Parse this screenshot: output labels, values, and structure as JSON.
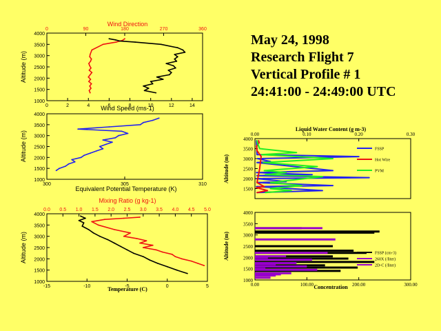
{
  "header": {
    "line1": "May 24, 1998",
    "line2": "Research Flight 7",
    "line3": "Vertical Profile # 1",
    "line4": "24:41:00 - 24:49:00 UTC"
  },
  "colors": {
    "background": "#ffff66",
    "red": "#ee1111",
    "blue": "#2222ee",
    "green": "#22ee22",
    "purple": "#9900cc",
    "black": "#000000"
  },
  "chart_data": [
    {
      "id": "wind",
      "type": "line",
      "title": "Wind Direction",
      "xlabel": "Wind Speed (ms-1)",
      "ylabel": "Altitude (m)",
      "ylim": [
        1000,
        4000
      ],
      "yticks": [
        "1000",
        "1500",
        "2000",
        "2500",
        "3000",
        "3500",
        "4000"
      ],
      "top_axis": {
        "lim": [
          0,
          360
        ],
        "ticks": [
          "0",
          "90",
          "180",
          "270",
          "360"
        ]
      },
      "bottom_axis": {
        "lim": [
          0,
          15
        ],
        "ticks": [
          "0",
          "2",
          "4",
          "6",
          "8",
          "10",
          "12",
          "14"
        ]
      },
      "series": [
        {
          "name": "Wind Direction",
          "axis": "top",
          "color": "#ee1111",
          "x": [
            100,
            98,
            102,
            99,
            103,
            97,
            101,
            96,
            100,
            104,
            98,
            102,
            99,
            97,
            101,
            103,
            99,
            100,
            104,
            130,
            160,
            175,
            180
          ],
          "y": [
            1350,
            1450,
            1550,
            1650,
            1750,
            1850,
            1950,
            2050,
            2150,
            2250,
            2350,
            2450,
            2550,
            2650,
            2750,
            2850,
            2950,
            3050,
            3250,
            3500,
            3600,
            3680,
            3750
          ]
        },
        {
          "name": "Wind Speed",
          "axis": "bottom",
          "color": "#000000",
          "x": [
            10.5,
            9.4,
            9.8,
            9.3,
            10.2,
            10.0,
            11.2,
            10.6,
            11.8,
            12.0,
            11.7,
            12.4,
            12.2,
            11.5,
            12.5,
            12.3,
            12.6,
            12.3,
            13.3,
            13.1,
            12.6,
            11.0,
            8.5,
            7.0,
            6.6,
            6.0
          ],
          "y": [
            1350,
            1450,
            1550,
            1650,
            1750,
            1850,
            1950,
            2050,
            2150,
            2250,
            2350,
            2450,
            2550,
            2650,
            2750,
            2850,
            2950,
            3050,
            3150,
            3250,
            3350,
            3500,
            3600,
            3650,
            3700,
            3750
          ]
        }
      ]
    },
    {
      "id": "theta",
      "type": "line",
      "xlabel": "Equivalent Potential Temperature (K)",
      "ylabel": "Altitude (m)",
      "ylim": [
        1000,
        4000
      ],
      "yticks": [
        "1000",
        "1500",
        "2000",
        "2500",
        "3000",
        "3500",
        "4000"
      ],
      "bottom_axis": {
        "lim": [
          300,
          310
        ],
        "ticks": [
          "300",
          "305",
          "310"
        ]
      },
      "series": [
        {
          "name": "Theta-e",
          "color": "#2222ee",
          "x": [
            300.6,
            300.8,
            301.2,
            301.4,
            301.8,
            301.6,
            302.2,
            302.4,
            302.8,
            303.2,
            303.6,
            303.4,
            303.8,
            304.2,
            303.6,
            304.4,
            304.6,
            305.2,
            304.8,
            302.0,
            304.0,
            306.0,
            306.2,
            306.8,
            307.2
          ],
          "y": [
            1400,
            1500,
            1600,
            1700,
            1800,
            1900,
            2000,
            2100,
            2200,
            2300,
            2400,
            2500,
            2600,
            2700,
            2800,
            2900,
            3000,
            3100,
            3200,
            3300,
            3400,
            3500,
            3600,
            3700,
            3800
          ]
        }
      ]
    },
    {
      "id": "temperature",
      "type": "line",
      "xlabel": "Temperature (C)",
      "ylabel": "Altitude (m)",
      "top_label": "Mixing Ratio (g kg-1)",
      "ylim": [
        1000,
        4000
      ],
      "yticks": [
        "1000",
        "1500",
        "2000",
        "2500",
        "3000",
        "3500",
        "4000"
      ],
      "top_axis": {
        "lim": [
          0,
          5
        ],
        "ticks": [
          "0.0",
          "0.5",
          "1.0",
          "1.5",
          "2.0",
          "2.5",
          "3.0",
          "3.5",
          "4.0",
          "4.5",
          "5.0"
        ]
      },
      "bottom_axis": {
        "lim": [
          -15,
          5
        ],
        "ticks": [
          "-15",
          "-10",
          "-5",
          "0",
          "5"
        ]
      },
      "series": [
        {
          "name": "Temperature",
          "axis": "bottom",
          "color": "#000000",
          "x": [
            2.5,
            1.2,
            0.0,
            -1.2,
            -2.2,
            -3.0,
            -4.2,
            -5.0,
            -5.8,
            -6.6,
            -7.4,
            -8.4,
            -9.2,
            -9.8,
            -10.6,
            -10.4,
            -11.0,
            -10.2,
            -10.8
          ],
          "y": [
            1350,
            1500,
            1650,
            1800,
            1950,
            2100,
            2250,
            2400,
            2550,
            2700,
            2850,
            3000,
            3150,
            3300,
            3450,
            3600,
            3700,
            3800,
            3900
          ]
        },
        {
          "name": "Mixing Ratio",
          "axis": "top",
          "color": "#ee1111",
          "x": [
            4.9,
            4.7,
            4.5,
            4.2,
            4.0,
            3.9,
            3.6,
            3.4,
            3.2,
            3.0,
            3.3,
            2.9,
            3.1,
            2.8,
            2.4,
            2.6,
            2.1,
            1.6,
            1.4,
            1.8,
            2.4,
            2.9
          ],
          "y": [
            1700,
            1800,
            1900,
            2000,
            2100,
            2200,
            2300,
            2400,
            2450,
            2500,
            2600,
            2700,
            2800,
            2900,
            3000,
            3150,
            3300,
            3500,
            3650,
            3750,
            3800,
            3850
          ]
        }
      ]
    },
    {
      "id": "lwc",
      "type": "line",
      "title": "Liquid Water Content (g m-3)",
      "ylabel": "Altitude (m)",
      "ylim": [
        1000,
        4000
      ],
      "yticks": [
        "1000",
        "1500",
        "2000",
        "2500",
        "3000",
        "3500",
        "4000"
      ],
      "top_axis": {
        "lim": [
          0,
          0.3
        ],
        "ticks": [
          "0.00",
          "0.10",
          "0.20",
          "0.30"
        ]
      },
      "legend": [
        "FSSP",
        "Hot Wire",
        "PVM"
      ],
      "series": [
        {
          "name": "FSSP",
          "color": "#2222ee",
          "x": [
            0.004,
            0.13,
            0.003,
            0.15,
            0.004,
            0.06,
            0.003,
            0.22,
            0.004,
            0.11,
            0.003,
            0.15,
            0.004,
            0.03,
            0.005,
            0.2,
            0.004,
            0.003
          ],
          "y": [
            1300,
            1400,
            1600,
            1650,
            1800,
            1850,
            2000,
            2050,
            2150,
            2200,
            2300,
            2400,
            2800,
            2850,
            3000,
            3100,
            3200,
            3900
          ]
        },
        {
          "name": "Hot Wire",
          "color": "#ee1111",
          "x": [
            0.004,
            0.024,
            0.003,
            0.018,
            0.004,
            0.009,
            0.012,
            0.004,
            0.003,
            0.008,
            0.007
          ],
          "y": [
            1300,
            1400,
            1550,
            1600,
            1800,
            2500,
            3100,
            3400,
            3600,
            3800,
            3900
          ]
        },
        {
          "name": "PVM",
          "color": "#22ee22",
          "x": [
            0.02,
            0.07,
            0.03,
            0.09,
            0.03,
            0.13,
            0.02,
            0.06,
            0.018,
            0.12,
            0.016,
            0.15,
            0.013,
            0.08,
            0.009,
            0.006,
            0.004
          ],
          "y": [
            1300,
            1400,
            1500,
            1650,
            1800,
            2100,
            2200,
            2300,
            2400,
            2600,
            2800,
            3000,
            3200,
            3300,
            3500,
            3700,
            3900
          ]
        }
      ]
    },
    {
      "id": "concentration",
      "type": "bar",
      "xlabel": "Concentration",
      "ylabel": "Altitude (m)",
      "ylim": [
        1000,
        4000
      ],
      "yticks": [
        "1000",
        "1500",
        "2000",
        "2500",
        "3000",
        "3500",
        "4000"
      ],
      "bottom_axis": {
        "lim": [
          0,
          300
        ],
        "ticks": [
          "0.00",
          "100.00",
          "200.00",
          "300.00"
        ]
      },
      "legend": [
        "FSSP (cm-3)",
        "260X (/liter)",
        "2D-C (/liter)"
      ],
      "series": [
        {
          "name": "FSSP (cm-3)",
          "color": "#000000",
          "x": [
            165,
            198,
            135,
            230,
            180,
            150,
            215,
            190,
            240,
            90,
            230,
            150
          ],
          "y": [
            1400,
            1550,
            1650,
            1800,
            1950,
            2050,
            2200,
            2300,
            3150,
            3300,
            3100,
            2500
          ]
        },
        {
          "name": "260X (/liter)",
          "color": "#9900cc",
          "x": [
            40,
            70,
            120,
            100,
            80,
            110,
            60,
            140,
            155,
            130
          ],
          "y": [
            1200,
            1300,
            1450,
            1600,
            1750,
            1900,
            2050,
            2200,
            2800,
            3300
          ]
        },
        {
          "name": "2D-C (/liter)",
          "color": "#9900cc",
          "x": [
            30,
            50,
            20,
            40,
            25
          ],
          "y": [
            1100,
            1250,
            1500,
            1700,
            2000
          ]
        }
      ]
    }
  ]
}
